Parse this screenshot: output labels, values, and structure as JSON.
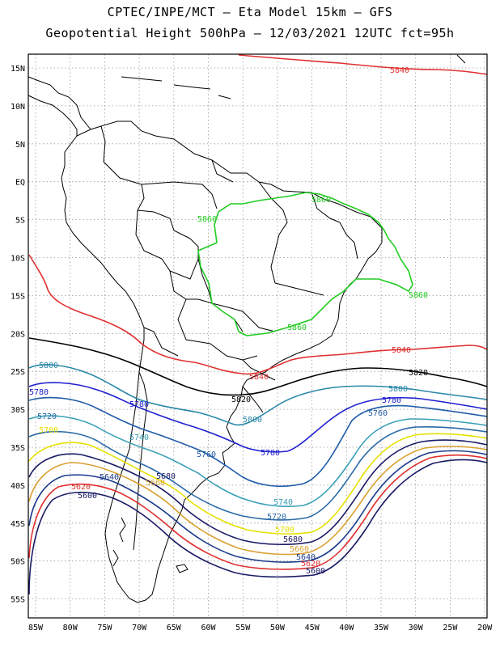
{
  "title": {
    "line1": "CPTEC/INPE/MCT –  Eta Model 15km – GFS",
    "line2": "Geopotential Height 500hPa – 12/03/2021 12UTC fct=95h"
  },
  "lat_ticks": [
    "15N",
    "10N",
    "5N",
    "EQ",
    "5S",
    "10S",
    "15S",
    "20S",
    "25S",
    "30S",
    "35S",
    "40S",
    "45S",
    "50S",
    "55S"
  ],
  "lon_ticks": [
    "85W",
    "80W",
    "75W",
    "70W",
    "65W",
    "60W",
    "55W",
    "50W",
    "45W",
    "40W",
    "35W",
    "30W",
    "25W",
    "20W"
  ],
  "contour_colors": {
    "5600": "#1a1a66",
    "5620": "#e03030",
    "5640": "#1a3a8a",
    "5660": "#d9a030",
    "5680": "#1a1a66",
    "5700": "#e6e000",
    "5720": "#2a6aa8",
    "5740": "#3aa0b8",
    "5760": "#1e5aa8",
    "5780": "#2020d0",
    "5800": "#2a88a8",
    "5820": "#000000",
    "5840": "#e03030",
    "5860": "#22cc22"
  },
  "contour_labels": [
    {
      "text": "5840",
      "key": "5840"
    },
    {
      "text": "5860",
      "key": "5860"
    },
    {
      "text": "5860",
      "key": "5860"
    },
    {
      "text": "5860",
      "key": "5860"
    },
    {
      "text": "5860",
      "key": "5860"
    },
    {
      "text": "5840",
      "key": "5840"
    },
    {
      "text": "5840",
      "key": "5840"
    },
    {
      "text": "5820",
      "key": "5820"
    },
    {
      "text": "5820",
      "key": "5820"
    },
    {
      "text": "5800",
      "key": "5800"
    },
    {
      "text": "5800",
      "key": "5800"
    },
    {
      "text": "5800",
      "key": "5800"
    },
    {
      "text": "5780",
      "key": "5780"
    },
    {
      "text": "5780",
      "key": "5780"
    },
    {
      "text": "5780",
      "key": "5780"
    },
    {
      "text": "5780",
      "key": "5780"
    },
    {
      "text": "5760",
      "key": "5760"
    },
    {
      "text": "5760",
      "key": "5760"
    },
    {
      "text": "5740",
      "key": "5740"
    },
    {
      "text": "5740",
      "key": "5740"
    },
    {
      "text": "5720",
      "key": "5720"
    },
    {
      "text": "5720",
      "key": "5720"
    },
    {
      "text": "5700",
      "key": "5700"
    },
    {
      "text": "5700",
      "key": "5700"
    },
    {
      "text": "5680",
      "key": "5680"
    },
    {
      "text": "5680",
      "key": "5680"
    },
    {
      "text": "5660",
      "key": "5660"
    },
    {
      "text": "5660",
      "key": "5660"
    },
    {
      "text": "5640",
      "key": "5640"
    },
    {
      "text": "5640",
      "key": "5640"
    },
    {
      "text": "5620",
      "key": "5620"
    },
    {
      "text": "5620",
      "key": "5620"
    },
    {
      "text": "5600",
      "key": "5600"
    },
    {
      "text": "5600",
      "key": "5600"
    }
  ]
}
